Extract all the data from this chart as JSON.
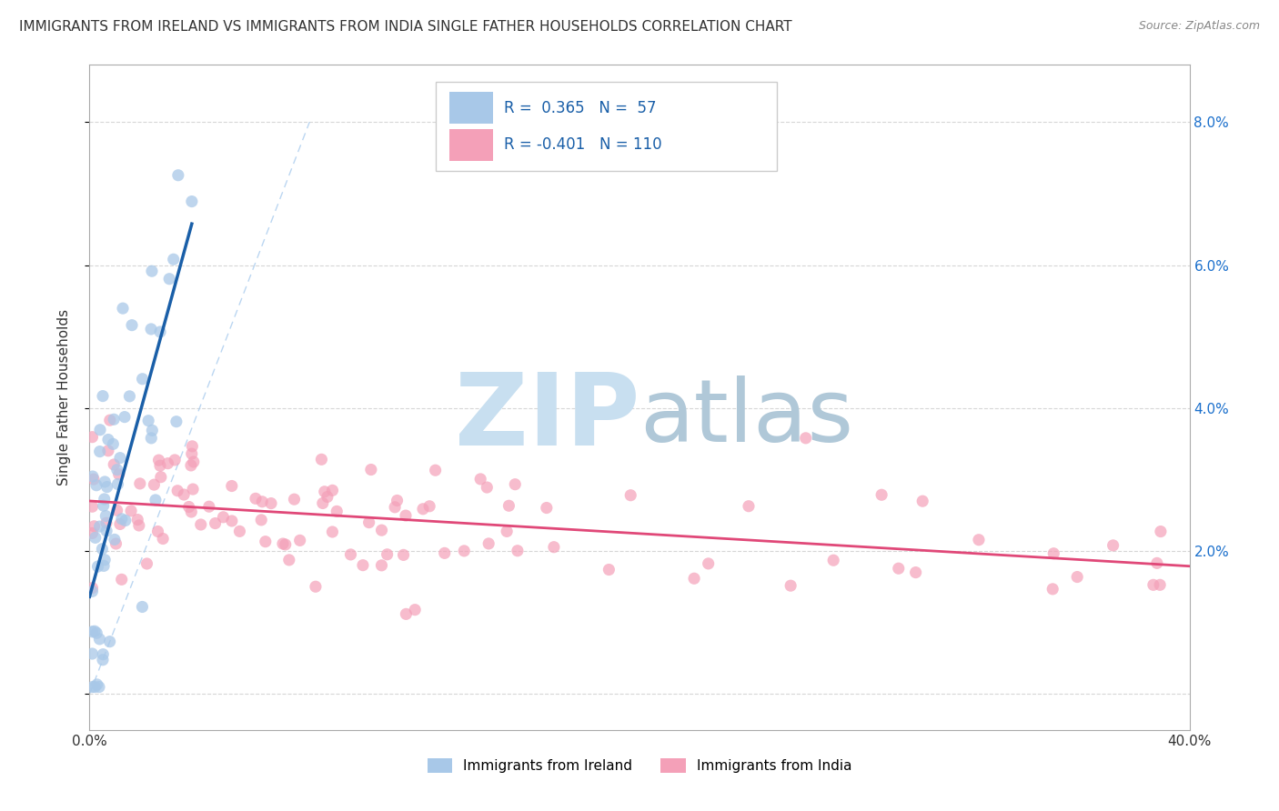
{
  "title": "IMMIGRANTS FROM IRELAND VS IMMIGRANTS FROM INDIA SINGLE FATHER HOUSEHOLDS CORRELATION CHART",
  "source": "Source: ZipAtlas.com",
  "ylabel": "Single Father Households",
  "xlim": [
    0.0,
    0.4
  ],
  "ylim": [
    -0.005,
    0.088
  ],
  "ireland_R": 0.365,
  "ireland_N": 57,
  "india_R": -0.401,
  "india_N": 110,
  "ireland_color": "#a8c8e8",
  "india_color": "#f4a0b8",
  "ireland_line_color": "#1a5fa8",
  "india_line_color": "#e04878",
  "legend_r_color": "#1a5fa8",
  "background_color": "#ffffff",
  "grid_color": "#cccccc",
  "title_color": "#333333",
  "source_color": "#888888",
  "watermark_zip_color": "#c8dff0",
  "watermark_atlas_color": "#b0c8d8",
  "axis_color": "#aaaaaa",
  "right_tick_color": "#1a6fcc",
  "seed_ireland": 7,
  "seed_india": 13
}
